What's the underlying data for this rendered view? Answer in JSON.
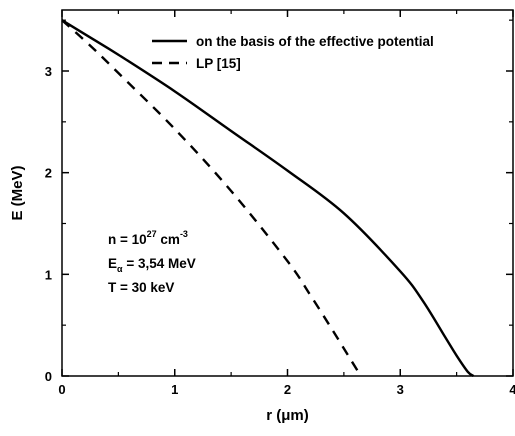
{
  "chart_data": {
    "type": "line",
    "xlabel": "r (μm)",
    "ylabel": "E (MeV)",
    "xlim": [
      0,
      4
    ],
    "ylim": [
      0,
      3.6
    ],
    "xticks": [
      0,
      1,
      2,
      3,
      4
    ],
    "yticks": [
      0,
      1,
      2,
      3
    ],
    "x_tick_labels": [
      "0",
      "1",
      "2",
      "3",
      "4"
    ],
    "y_tick_labels": [
      "0",
      "1",
      "2",
      "3"
    ],
    "grid": false,
    "legend_position": "top-right",
    "series": [
      {
        "name": "on the basis of the effective potential",
        "style": "solid",
        "color": "#000000",
        "x": [
          0,
          0.25,
          0.5,
          1.0,
          1.5,
          2.0,
          2.5,
          3.0,
          3.2,
          3.4,
          3.5,
          3.6,
          3.65
        ],
        "y": [
          3.5,
          3.33,
          3.16,
          2.8,
          2.41,
          2.02,
          1.6,
          1.03,
          0.74,
          0.38,
          0.2,
          0.04,
          0.0
        ]
      },
      {
        "name": "LP [15]",
        "style": "dashed",
        "color": "#000000",
        "x": [
          0,
          0.25,
          0.5,
          1.0,
          1.5,
          2.0,
          2.2,
          2.4,
          2.55,
          2.65
        ],
        "y": [
          3.5,
          3.25,
          2.98,
          2.43,
          1.82,
          1.13,
          0.8,
          0.45,
          0.18,
          0.0
        ]
      }
    ],
    "annotations": [
      {
        "text": "n = 10",
        "sup": "27",
        "tail": " cm",
        "sup2": "-3"
      },
      {
        "text": "E",
        "sub": "α",
        "tail": " = 3,54 MeV"
      },
      {
        "text": "T = 30 keV"
      }
    ]
  }
}
